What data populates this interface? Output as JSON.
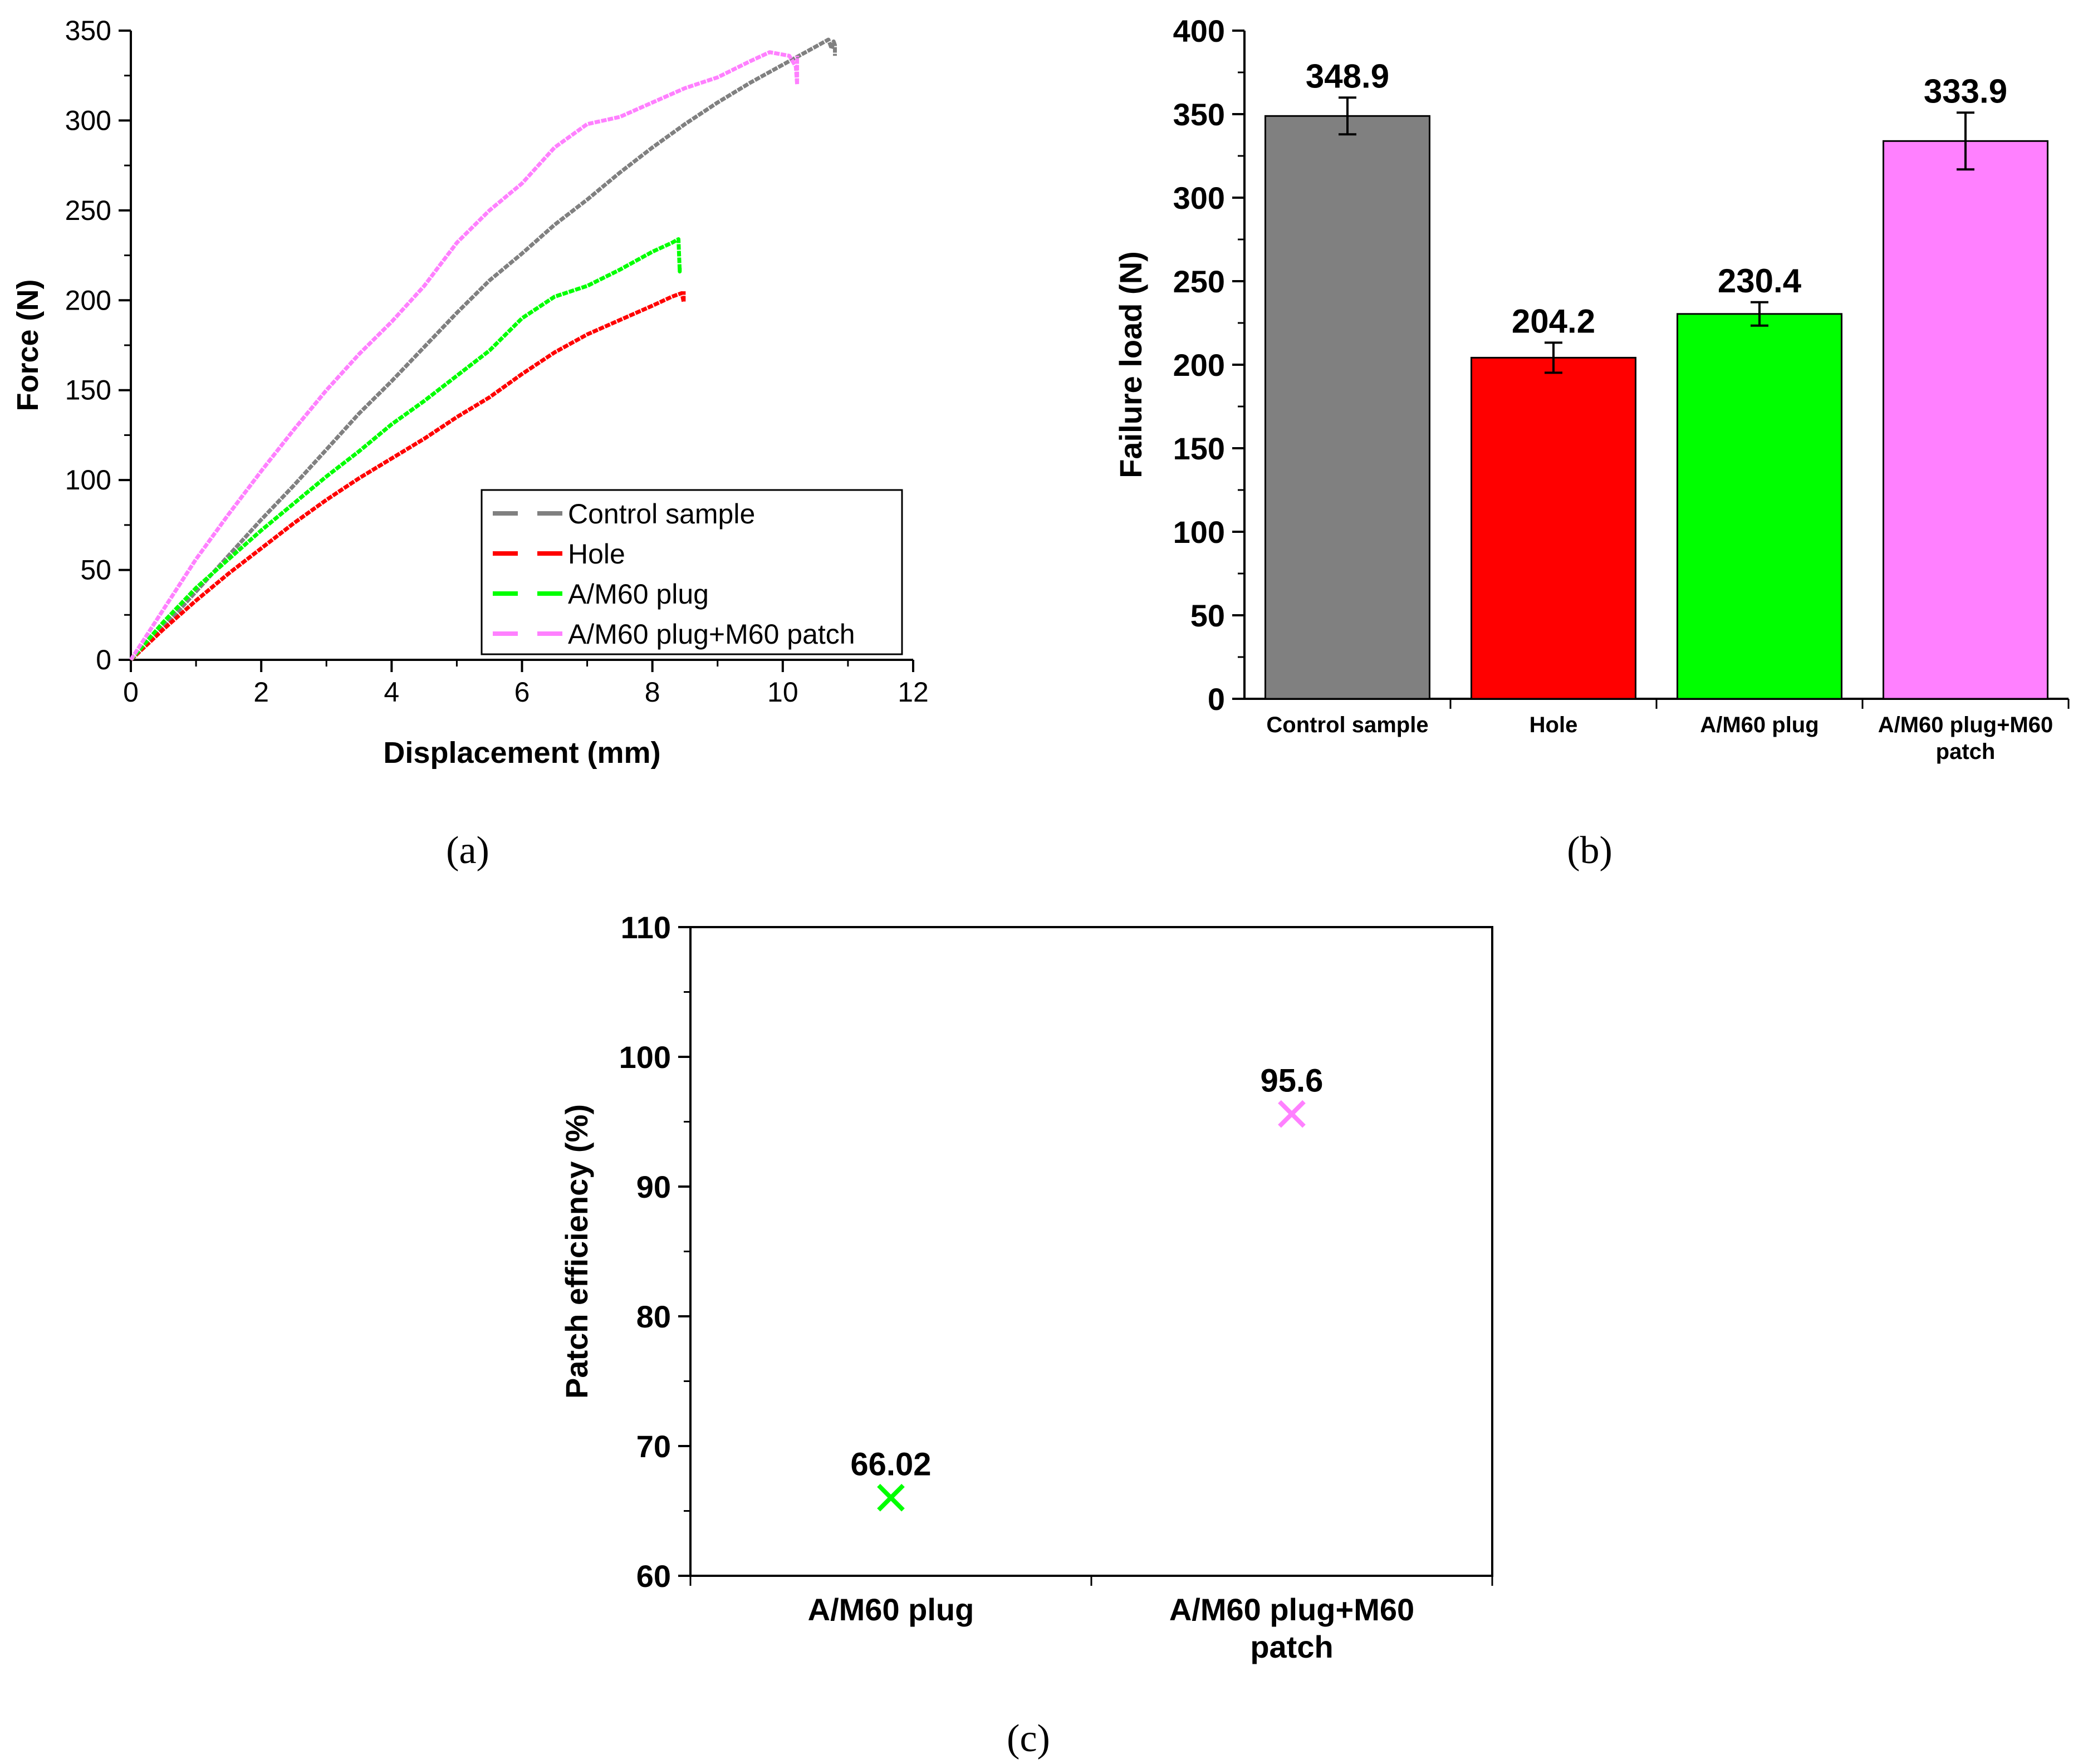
{
  "colors": {
    "control": "#808080",
    "hole": "#ff0000",
    "plug": "#00ff00",
    "patch": "#ff80ff",
    "axis": "#000000"
  },
  "chart_data": [
    {
      "panel_label": "(a)",
      "type": "line",
      "xlabel": "Displacement (mm)",
      "ylabel": "Force (N)",
      "xlim": [
        0,
        12
      ],
      "ylim": [
        0,
        350
      ],
      "xticks": [
        0,
        2,
        4,
        6,
        8,
        10,
        12
      ],
      "yticks": [
        0,
        50,
        100,
        150,
        200,
        250,
        300,
        350
      ],
      "grid": false,
      "legend_position": "bottom-right",
      "series": [
        {
          "name": "Control sample",
          "color": "#808080",
          "x": [
            0,
            0.5,
            1,
            1.5,
            2,
            2.5,
            3,
            3.5,
            4,
            4.5,
            5,
            5.5,
            6,
            6.5,
            7,
            7.5,
            8,
            8.5,
            9,
            9.5,
            10,
            10.5,
            10.7,
            10.75,
            10.78,
            10.8,
            10.8
          ],
          "y": [
            0,
            18,
            38,
            58,
            78,
            97,
            117,
            137,
            155,
            174,
            193,
            211,
            226,
            242,
            256,
            271,
            285,
            298,
            310,
            321,
            331,
            341,
            345,
            340,
            344,
            342,
            336
          ]
        },
        {
          "name": "Hole",
          "color": "#ff0000",
          "x": [
            0,
            0.5,
            1,
            1.5,
            2,
            2.5,
            3,
            3.5,
            4,
            4.5,
            5,
            5.5,
            6,
            6.5,
            7,
            7.5,
            8,
            8.3,
            8.45,
            8.48,
            8.48
          ],
          "y": [
            0,
            17,
            33,
            48,
            62,
            76,
            89,
            101,
            112,
            123,
            135,
            146,
            159,
            171,
            181,
            189,
            197,
            202,
            204,
            199,
            205
          ]
        },
        {
          "name": "A/M60 plug",
          "color": "#00ff00",
          "x": [
            0,
            0.5,
            1,
            1.5,
            2,
            2.5,
            3,
            3.5,
            4,
            4.5,
            5,
            5.5,
            6,
            6.5,
            7,
            7.5,
            8,
            8.3,
            8.4,
            8.42,
            8.42
          ],
          "y": [
            0,
            21,
            40,
            56,
            72,
            87,
            102,
            116,
            131,
            144,
            158,
            172,
            190,
            202,
            208,
            217,
            227,
            232,
            234,
            216,
            218
          ]
        },
        {
          "name": "A/M60 plug+M60 patch",
          "color": "#ff80ff",
          "x": [
            0,
            0.5,
            1,
            1.5,
            2,
            2.5,
            3,
            3.5,
            4,
            4.5,
            5,
            5.5,
            6,
            6.5,
            7,
            7.5,
            8,
            8.5,
            9,
            9.5,
            9.8,
            10.1,
            10.2,
            10.22,
            10.22
          ],
          "y": [
            0,
            28,
            56,
            81,
            105,
            128,
            150,
            170,
            188,
            208,
            232,
            250,
            265,
            285,
            298,
            302,
            310,
            318,
            324,
            333,
            338,
            336,
            330,
            320,
            336
          ]
        }
      ]
    },
    {
      "panel_label": "(b)",
      "type": "bar",
      "xlabel": "",
      "ylabel": "Failure load (N)",
      "ylim": [
        0,
        400
      ],
      "yticks": [
        0,
        50,
        100,
        150,
        200,
        250,
        300,
        350,
        400
      ],
      "grid": false,
      "categories": [
        "Control sample",
        "Hole",
        "A/M60 plug",
        "A/M60 plug+M60 patch"
      ],
      "values": [
        348.9,
        204.2,
        230.4,
        333.9
      ],
      "value_labels": [
        "348.9",
        "204.2",
        "230.4",
        "333.9"
      ],
      "errors": [
        11,
        9,
        7,
        17
      ],
      "colors": [
        "#808080",
        "#ff0000",
        "#00ff00",
        "#ff80ff"
      ]
    },
    {
      "panel_label": "(c)",
      "type": "scatter",
      "xlabel": "",
      "ylabel": "Patch efficiency (%)",
      "ylim": [
        60,
        110
      ],
      "yticks": [
        60,
        70,
        80,
        90,
        100,
        110
      ],
      "grid": false,
      "categories": [
        "A/M60 plug",
        "A/M60 plug+M60 patch"
      ],
      "values": [
        66.02,
        95.6
      ],
      "value_labels": [
        "66.02",
        "95.6"
      ],
      "colors": [
        "#00ff00",
        "#ff80ff"
      ],
      "marker": "x"
    }
  ]
}
